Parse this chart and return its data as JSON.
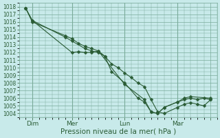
{
  "xlabel": "Pression niveau de la mer( hPa )",
  "ylim": [
    1003.5,
    1018.5
  ],
  "xlim": [
    0,
    15
  ],
  "yticks": [
    1004,
    1005,
    1006,
    1007,
    1008,
    1009,
    1010,
    1011,
    1012,
    1013,
    1014,
    1015,
    1016,
    1017,
    1018
  ],
  "xtick_positions": [
    1,
    4,
    8,
    12,
    14.5
  ],
  "xtick_labels": [
    "Dim",
    "Mer",
    "Lun",
    "Mar",
    ""
  ],
  "bg_color": "#c8eaea",
  "grid_color": "#7aab9a",
  "line_color": "#2a5c35",
  "series1_x": [
    0.5,
    1.0,
    4.0,
    4.5,
    5.0,
    5.5,
    6.0,
    6.5,
    7.0,
    7.5,
    8.0,
    8.5,
    9.0,
    9.5,
    10.0,
    10.5,
    11.0,
    12.0,
    12.5,
    13.0,
    13.5,
    14.0,
    14.5
  ],
  "series1_y": [
    1017.8,
    1016.2,
    1012.0,
    1012.1,
    1012.0,
    1012.0,
    1012.2,
    1011.5,
    1010.5,
    1010.0,
    1009.3,
    1008.7,
    1008.0,
    1007.5,
    1005.8,
    1004.2,
    1004.0,
    1004.8,
    1005.2,
    1005.4,
    1005.2,
    1005.0,
    1005.8
  ],
  "series2_x": [
    0.5,
    1.0,
    3.5,
    4.0,
    5.0,
    5.5,
    6.0,
    6.5,
    7.0,
    8.0,
    9.0,
    9.5,
    10.0,
    10.5,
    11.0,
    12.0,
    12.5,
    13.0,
    13.5,
    14.0,
    14.5
  ],
  "series2_y": [
    1017.8,
    1016.2,
    1014.0,
    1013.5,
    1012.5,
    1012.2,
    1012.0,
    1011.5,
    1009.5,
    1008.0,
    1006.0,
    1005.5,
    1004.2,
    1004.0,
    1004.8,
    1005.5,
    1005.8,
    1006.0,
    1005.8,
    1006.0,
    1005.8
  ],
  "series3_x": [
    0.5,
    1.0,
    3.5,
    4.0,
    4.5,
    5.0,
    5.5,
    6.0,
    8.0,
    9.5,
    10.0,
    10.5,
    11.0,
    12.0,
    12.5,
    13.0,
    14.5
  ],
  "series3_y": [
    1017.8,
    1016.0,
    1014.2,
    1013.8,
    1013.2,
    1012.8,
    1012.5,
    1012.2,
    1007.8,
    1005.8,
    1004.2,
    1004.0,
    1004.8,
    1005.5,
    1006.0,
    1006.2,
    1006.0
  ],
  "marker": "D",
  "markersize": 2.5,
  "linewidth": 0.8,
  "ytick_fontsize": 5.5,
  "xtick_fontsize": 6.5,
  "xlabel_fontsize": 7.5
}
